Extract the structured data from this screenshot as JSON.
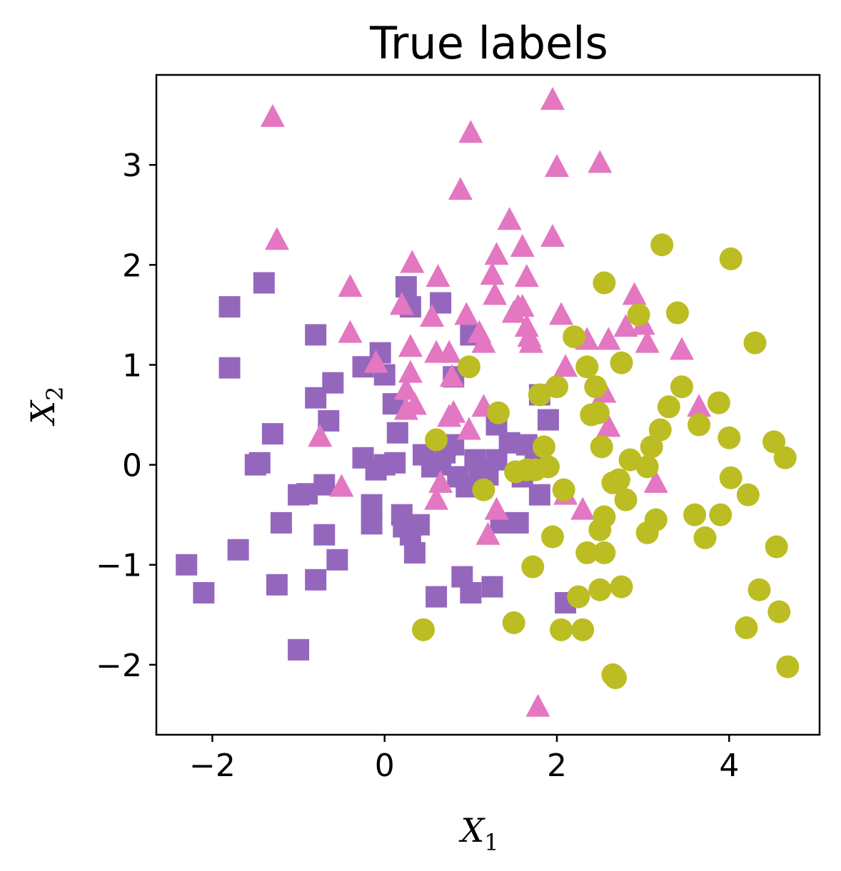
{
  "chart_data": {
    "type": "scatter",
    "title": "True labels",
    "xlabel": {
      "base": "X",
      "sub": "1"
    },
    "ylabel": {
      "base": "X",
      "sub": "2"
    },
    "xlim": [
      -2.65,
      5.05
    ],
    "ylim": [
      -2.7,
      3.9
    ],
    "xticks": [
      -2,
      0,
      2,
      4
    ],
    "yticks": [
      -2,
      -1,
      0,
      1,
      2,
      3
    ],
    "xtick_labels": [
      "−2",
      "0",
      "2",
      "4"
    ],
    "ytick_labels": [
      "−2",
      "−1",
      "0",
      "1",
      "2",
      "3"
    ],
    "grid": false,
    "series": [
      {
        "marker": "square",
        "color": "#9467bd",
        "points": [
          [
            -2.3,
            -1.0
          ],
          [
            -2.1,
            -1.28
          ],
          [
            -1.8,
            1.58
          ],
          [
            -1.8,
            0.97
          ],
          [
            -1.7,
            -0.85
          ],
          [
            -1.5,
            0.0
          ],
          [
            -1.45,
            0.02
          ],
          [
            -1.4,
            1.82
          ],
          [
            -1.3,
            0.31
          ],
          [
            -1.25,
            -1.2
          ],
          [
            -1.2,
            -0.58
          ],
          [
            -1.0,
            -0.3
          ],
          [
            -1.0,
            -1.85
          ],
          [
            -0.9,
            -0.29
          ],
          [
            -0.8,
            0.67
          ],
          [
            -0.8,
            -1.15
          ],
          [
            -0.8,
            1.3
          ],
          [
            -0.7,
            -0.2
          ],
          [
            -0.7,
            -0.7
          ],
          [
            -0.65,
            0.44
          ],
          [
            -0.6,
            0.82
          ],
          [
            -0.55,
            -0.95
          ],
          [
            -0.25,
            0.98
          ],
          [
            -0.25,
            0.07
          ],
          [
            -0.15,
            -0.4
          ],
          [
            -0.15,
            -0.59
          ],
          [
            -0.1,
            -0.05
          ],
          [
            -0.05,
            1.12
          ],
          [
            0.0,
            0.9
          ],
          [
            0.0,
            0.0
          ],
          [
            0.1,
            0.61
          ],
          [
            0.12,
            0.02
          ],
          [
            0.15,
            0.32
          ],
          [
            0.2,
            -0.5
          ],
          [
            0.22,
            -0.62
          ],
          [
            0.25,
            1.78
          ],
          [
            0.3,
            1.58
          ],
          [
            0.3,
            -0.7
          ],
          [
            0.35,
            -0.88
          ],
          [
            0.4,
            -0.6
          ],
          [
            0.45,
            0.1
          ],
          [
            0.55,
            -0.02
          ],
          [
            0.6,
            -1.32
          ],
          [
            0.65,
            0.0
          ],
          [
            0.65,
            1.62
          ],
          [
            0.7,
            0.12
          ],
          [
            0.8,
            0.2
          ],
          [
            0.8,
            0.88
          ],
          [
            0.85,
            -0.12
          ],
          [
            0.9,
            -1.12
          ],
          [
            0.95,
            -0.22
          ],
          [
            1.0,
            -1.28
          ],
          [
            1.0,
            1.3
          ],
          [
            1.05,
            0.05
          ],
          [
            1.1,
            -0.05
          ],
          [
            1.2,
            -0.1
          ],
          [
            1.25,
            -1.22
          ],
          [
            1.3,
            0.4
          ],
          [
            1.3,
            0.05
          ],
          [
            1.35,
            -0.58
          ],
          [
            1.45,
            0.22
          ],
          [
            1.55,
            -0.58
          ],
          [
            1.6,
            -0.12
          ],
          [
            1.65,
            0.2
          ],
          [
            1.75,
            0.0
          ],
          [
            1.8,
            -0.3
          ],
          [
            1.8,
            0.7
          ],
          [
            1.9,
            0.45
          ],
          [
            2.1,
            -1.38
          ]
        ]
      },
      {
        "marker": "triangle",
        "color": "#e377c2",
        "points": [
          [
            -1.3,
            3.48
          ],
          [
            -1.25,
            2.25
          ],
          [
            -0.75,
            0.28
          ],
          [
            -0.5,
            -0.22
          ],
          [
            -0.4,
            1.78
          ],
          [
            -0.4,
            1.32
          ],
          [
            -0.1,
            1.02
          ],
          [
            0.2,
            1.6
          ],
          [
            0.25,
            0.75
          ],
          [
            0.25,
            0.55
          ],
          [
            0.3,
            0.92
          ],
          [
            0.3,
            1.18
          ],
          [
            0.32,
            2.02
          ],
          [
            0.35,
            0.6
          ],
          [
            0.55,
            1.48
          ],
          [
            0.6,
            -0.35
          ],
          [
            0.6,
            1.12
          ],
          [
            0.62,
            1.88
          ],
          [
            0.65,
            -0.18
          ],
          [
            0.75,
            0.48
          ],
          [
            0.75,
            1.12
          ],
          [
            0.78,
            0.88
          ],
          [
            0.8,
            0.52
          ],
          [
            0.88,
            2.75
          ],
          [
            0.95,
            1.5
          ],
          [
            0.98,
            0.35
          ],
          [
            1.0,
            3.32
          ],
          [
            1.1,
            1.32
          ],
          [
            1.15,
            0.58
          ],
          [
            1.15,
            1.22
          ],
          [
            1.2,
            -0.7
          ],
          [
            1.25,
            1.9
          ],
          [
            1.28,
            1.7
          ],
          [
            1.3,
            2.1
          ],
          [
            1.3,
            -0.45
          ],
          [
            1.45,
            2.45
          ],
          [
            1.5,
            1.52
          ],
          [
            1.55,
            1.58
          ],
          [
            1.6,
            2.18
          ],
          [
            1.6,
            1.58
          ],
          [
            1.65,
            1.38
          ],
          [
            1.65,
            1.88
          ],
          [
            1.68,
            1.28
          ],
          [
            1.7,
            1.22
          ],
          [
            1.78,
            -2.42
          ],
          [
            1.95,
            3.65
          ],
          [
            1.95,
            2.28
          ],
          [
            2.0,
            2.98
          ],
          [
            2.05,
            1.5
          ],
          [
            2.1,
            0.98
          ],
          [
            2.1,
            -0.3
          ],
          [
            2.3,
            -0.45
          ],
          [
            2.35,
            1.25
          ],
          [
            2.5,
            3.02
          ],
          [
            2.55,
            0.72
          ],
          [
            2.6,
            0.38
          ],
          [
            2.6,
            1.25
          ],
          [
            2.8,
            1.38
          ],
          [
            2.9,
            1.7
          ],
          [
            3.0,
            1.4
          ],
          [
            3.05,
            1.22
          ],
          [
            3.15,
            -0.18
          ],
          [
            3.45,
            1.15
          ],
          [
            3.65,
            0.58
          ]
        ]
      },
      {
        "marker": "circle",
        "color": "#bcbd22",
        "points": [
          [
            0.45,
            -1.65
          ],
          [
            0.6,
            0.25
          ],
          [
            0.98,
            0.98
          ],
          [
            1.15,
            -0.25
          ],
          [
            1.32,
            0.52
          ],
          [
            1.5,
            -1.58
          ],
          [
            1.52,
            -0.07
          ],
          [
            1.65,
            -0.05
          ],
          [
            1.72,
            -1.02
          ],
          [
            1.75,
            -0.05
          ],
          [
            1.8,
            0.7
          ],
          [
            1.85,
            0.18
          ],
          [
            1.9,
            -0.02
          ],
          [
            1.95,
            -0.72
          ],
          [
            2.0,
            0.78
          ],
          [
            2.05,
            -1.65
          ],
          [
            2.08,
            -0.25
          ],
          [
            2.2,
            1.28
          ],
          [
            2.25,
            -1.32
          ],
          [
            2.3,
            -1.65
          ],
          [
            2.35,
            0.98
          ],
          [
            2.35,
            -0.88
          ],
          [
            2.4,
            0.5
          ],
          [
            2.45,
            0.78
          ],
          [
            2.48,
            0.52
          ],
          [
            2.5,
            -0.65
          ],
          [
            2.5,
            -1.25
          ],
          [
            2.52,
            0.18
          ],
          [
            2.55,
            -0.88
          ],
          [
            2.55,
            -0.52
          ],
          [
            2.55,
            1.82
          ],
          [
            2.65,
            -0.18
          ],
          [
            2.65,
            -2.1
          ],
          [
            2.68,
            -2.13
          ],
          [
            2.72,
            -0.15
          ],
          [
            2.75,
            -1.22
          ],
          [
            2.75,
            1.02
          ],
          [
            2.8,
            -0.35
          ],
          [
            2.85,
            0.05
          ],
          [
            2.95,
            1.5
          ],
          [
            3.05,
            -0.02
          ],
          [
            3.05,
            -0.68
          ],
          [
            3.1,
            0.18
          ],
          [
            3.15,
            -0.55
          ],
          [
            3.2,
            0.35
          ],
          [
            3.22,
            2.2
          ],
          [
            3.3,
            0.58
          ],
          [
            3.4,
            1.52
          ],
          [
            3.45,
            0.78
          ],
          [
            3.6,
            -0.5
          ],
          [
            3.65,
            0.4
          ],
          [
            3.72,
            -0.73
          ],
          [
            3.88,
            0.62
          ],
          [
            3.9,
            -0.5
          ],
          [
            4.0,
            0.27
          ],
          [
            4.02,
            -0.13
          ],
          [
            4.02,
            2.06
          ],
          [
            4.2,
            -1.63
          ],
          [
            4.22,
            -0.3
          ],
          [
            4.3,
            1.22
          ],
          [
            4.35,
            -1.25
          ],
          [
            4.52,
            0.23
          ],
          [
            4.55,
            -0.82
          ],
          [
            4.58,
            -1.47
          ],
          [
            4.65,
            0.07
          ],
          [
            4.68,
            -2.02
          ]
        ]
      }
    ]
  }
}
